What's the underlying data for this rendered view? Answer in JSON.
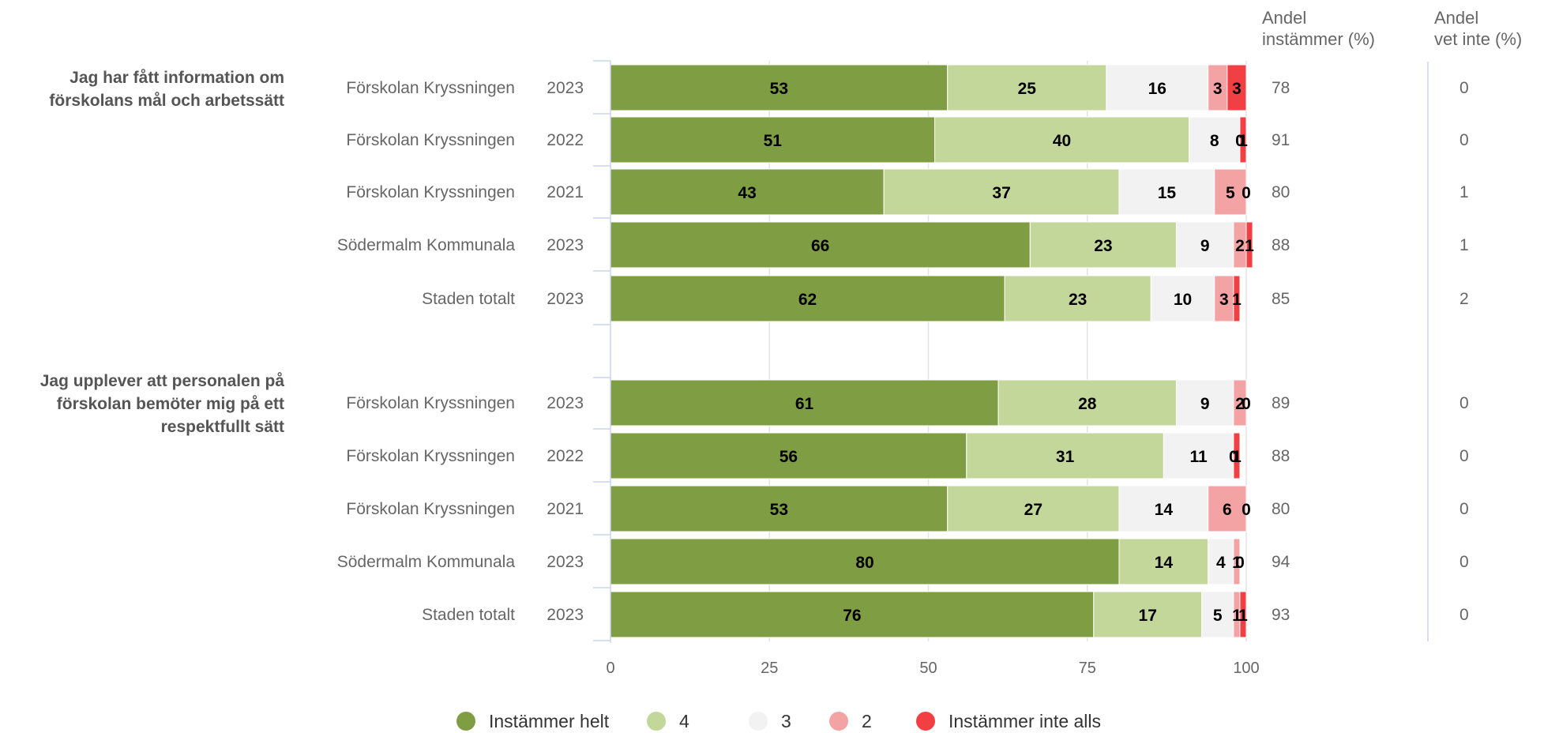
{
  "chart_data": {
    "type": "bar",
    "orientation": "horizontal",
    "stacked": true,
    "xlim": [
      0,
      100
    ],
    "xticks": [
      0,
      25,
      50,
      75,
      100
    ],
    "grid": true,
    "legend_position": "bottom",
    "column_headers": {
      "andel_instammer": [
        "Andel",
        "instämmer (%)"
      ],
      "andel_vet_inte": [
        "Andel",
        "vet inte (%)"
      ]
    },
    "series": [
      {
        "name": "Instämmer helt",
        "color": "#7f9d43"
      },
      {
        "name": "4",
        "color": "#c3d79b"
      },
      {
        "name": "3",
        "color": "#f2f2f2"
      },
      {
        "name": "2",
        "color": "#f4a3a5"
      },
      {
        "name": "Instämmer inte alls",
        "color": "#f23f43"
      }
    ],
    "groups": [
      {
        "question": [
          "Jag har fått information om",
          "förskolans mål och arbetssätt"
        ],
        "rows": [
          {
            "unit": "Förskolan Kryssningen",
            "year": "2023",
            "values": [
              53,
              25,
              16,
              3,
              3
            ],
            "andel_instammer": 78,
            "andel_vet_inte": 0
          },
          {
            "unit": "Förskolan Kryssningen",
            "year": "2022",
            "values": [
              51,
              40,
              8,
              0,
              1
            ],
            "andel_instammer": 91,
            "andel_vet_inte": 0
          },
          {
            "unit": "Förskolan Kryssningen",
            "year": "2021",
            "values": [
              43,
              37,
              15,
              5,
              0
            ],
            "andel_instammer": 80,
            "andel_vet_inte": 1
          },
          {
            "unit": "Södermalm Kommunala",
            "year": "2023",
            "values": [
              66,
              23,
              9,
              2,
              1
            ],
            "andel_instammer": 88,
            "andel_vet_inte": 1
          },
          {
            "unit": "Staden totalt",
            "year": "2023",
            "values": [
              62,
              23,
              10,
              3,
              1
            ],
            "andel_instammer": 85,
            "andel_vet_inte": 2
          }
        ]
      },
      {
        "question": [
          "Jag upplever att personalen på",
          "förskolan bemöter mig på ett",
          "respektfullt sätt"
        ],
        "rows": [
          {
            "unit": "Förskolan Kryssningen",
            "year": "2023",
            "values": [
              61,
              28,
              9,
              2,
              0
            ],
            "andel_instammer": 89,
            "andel_vet_inte": 0
          },
          {
            "unit": "Förskolan Kryssningen",
            "year": "2022",
            "values": [
              56,
              31,
              11,
              0,
              1
            ],
            "andel_instammer": 88,
            "andel_vet_inte": 0
          },
          {
            "unit": "Förskolan Kryssningen",
            "year": "2021",
            "values": [
              53,
              27,
              14,
              6,
              0
            ],
            "andel_instammer": 80,
            "andel_vet_inte": 0
          },
          {
            "unit": "Södermalm Kommunala",
            "year": "2023",
            "values": [
              80,
              14,
              4,
              1,
              0
            ],
            "andel_instammer": 94,
            "andel_vet_inte": 0
          },
          {
            "unit": "Staden totalt",
            "year": "2023",
            "values": [
              76,
              17,
              5,
              1,
              1
            ],
            "andel_instammer": 93,
            "andel_vet_inte": 0
          }
        ]
      }
    ]
  }
}
